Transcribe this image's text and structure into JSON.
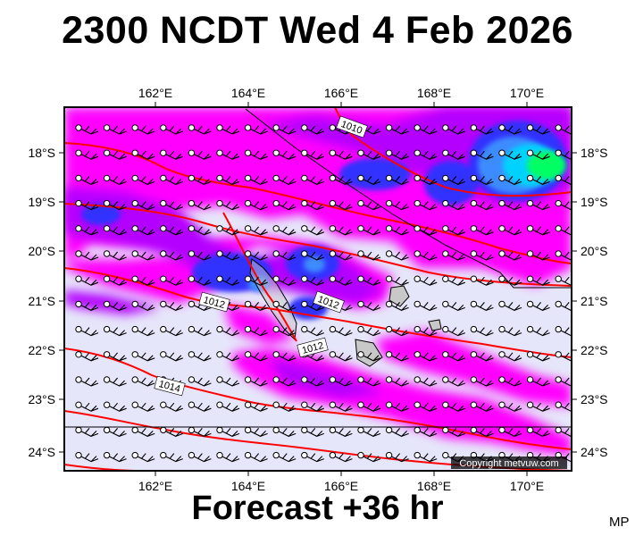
{
  "header": {
    "title": "2300 NCDT Wed 4 Feb 2026"
  },
  "footer": {
    "forecast": "Forecast +36 hr",
    "author": "MP"
  },
  "map": {
    "copyright": "Copyright metvuw.com",
    "lon_labels": [
      "162°E",
      "164°E",
      "166°E",
      "168°E",
      "170°E"
    ],
    "lat_labels": [
      "18°S",
      "19°S",
      "20°S",
      "21°S",
      "22°S",
      "23°S",
      "24°S"
    ],
    "isobar_labels": [
      "1010",
      "1012",
      "1012",
      "1012",
      "1014"
    ],
    "colors": {
      "background": "#e6e6fa",
      "magenta": "#ff00ff",
      "purple": "#b400ff",
      "blue": "#3232ff",
      "light_blue": "#3c8cff",
      "cyan": "#00d2ff",
      "green": "#00ff64",
      "isobar": "#ff0000",
      "land": "#c8c8c8"
    }
  }
}
